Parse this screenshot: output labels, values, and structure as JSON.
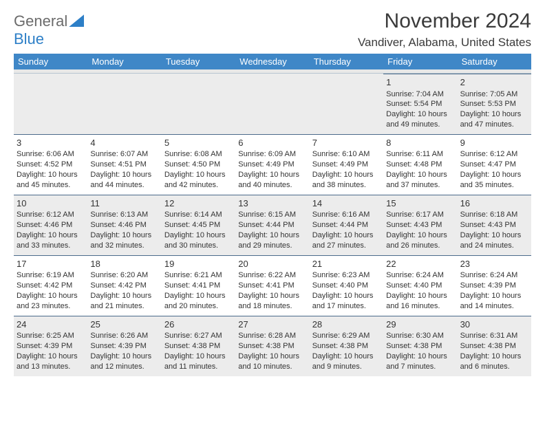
{
  "brand": {
    "part1": "General",
    "part2": "Blue"
  },
  "title": "November 2024",
  "location": "Vandiver, Alabama, United States",
  "colors": {
    "header_bg": "#3f87c7",
    "header_text": "#ffffff",
    "shade_bg": "#ececec",
    "week_divider": "#4a6a8a",
    "text": "#333333",
    "background": "#ffffff"
  },
  "typography": {
    "title_fontsize": 30,
    "location_fontsize": 17,
    "dow_fontsize": 13,
    "daynum_fontsize": 13,
    "body_fontsize": 11
  },
  "dow": [
    "Sunday",
    "Monday",
    "Tuesday",
    "Wednesday",
    "Thursday",
    "Friday",
    "Saturday"
  ],
  "weeks": [
    [
      null,
      null,
      null,
      null,
      null,
      {
        "n": "1",
        "sr": "Sunrise: 7:04 AM",
        "ss": "Sunset: 5:54 PM",
        "d1": "Daylight: 10 hours",
        "d2": "and 49 minutes."
      },
      {
        "n": "2",
        "sr": "Sunrise: 7:05 AM",
        "ss": "Sunset: 5:53 PM",
        "d1": "Daylight: 10 hours",
        "d2": "and 47 minutes."
      }
    ],
    [
      {
        "n": "3",
        "sr": "Sunrise: 6:06 AM",
        "ss": "Sunset: 4:52 PM",
        "d1": "Daylight: 10 hours",
        "d2": "and 45 minutes."
      },
      {
        "n": "4",
        "sr": "Sunrise: 6:07 AM",
        "ss": "Sunset: 4:51 PM",
        "d1": "Daylight: 10 hours",
        "d2": "and 44 minutes."
      },
      {
        "n": "5",
        "sr": "Sunrise: 6:08 AM",
        "ss": "Sunset: 4:50 PM",
        "d1": "Daylight: 10 hours",
        "d2": "and 42 minutes."
      },
      {
        "n": "6",
        "sr": "Sunrise: 6:09 AM",
        "ss": "Sunset: 4:49 PM",
        "d1": "Daylight: 10 hours",
        "d2": "and 40 minutes."
      },
      {
        "n": "7",
        "sr": "Sunrise: 6:10 AM",
        "ss": "Sunset: 4:49 PM",
        "d1": "Daylight: 10 hours",
        "d2": "and 38 minutes."
      },
      {
        "n": "8",
        "sr": "Sunrise: 6:11 AM",
        "ss": "Sunset: 4:48 PM",
        "d1": "Daylight: 10 hours",
        "d2": "and 37 minutes."
      },
      {
        "n": "9",
        "sr": "Sunrise: 6:12 AM",
        "ss": "Sunset: 4:47 PM",
        "d1": "Daylight: 10 hours",
        "d2": "and 35 minutes."
      }
    ],
    [
      {
        "n": "10",
        "sr": "Sunrise: 6:12 AM",
        "ss": "Sunset: 4:46 PM",
        "d1": "Daylight: 10 hours",
        "d2": "and 33 minutes."
      },
      {
        "n": "11",
        "sr": "Sunrise: 6:13 AM",
        "ss": "Sunset: 4:46 PM",
        "d1": "Daylight: 10 hours",
        "d2": "and 32 minutes."
      },
      {
        "n": "12",
        "sr": "Sunrise: 6:14 AM",
        "ss": "Sunset: 4:45 PM",
        "d1": "Daylight: 10 hours",
        "d2": "and 30 minutes."
      },
      {
        "n": "13",
        "sr": "Sunrise: 6:15 AM",
        "ss": "Sunset: 4:44 PM",
        "d1": "Daylight: 10 hours",
        "d2": "and 29 minutes."
      },
      {
        "n": "14",
        "sr": "Sunrise: 6:16 AM",
        "ss": "Sunset: 4:44 PM",
        "d1": "Daylight: 10 hours",
        "d2": "and 27 minutes."
      },
      {
        "n": "15",
        "sr": "Sunrise: 6:17 AM",
        "ss": "Sunset: 4:43 PM",
        "d1": "Daylight: 10 hours",
        "d2": "and 26 minutes."
      },
      {
        "n": "16",
        "sr": "Sunrise: 6:18 AM",
        "ss": "Sunset: 4:43 PM",
        "d1": "Daylight: 10 hours",
        "d2": "and 24 minutes."
      }
    ],
    [
      {
        "n": "17",
        "sr": "Sunrise: 6:19 AM",
        "ss": "Sunset: 4:42 PM",
        "d1": "Daylight: 10 hours",
        "d2": "and 23 minutes."
      },
      {
        "n": "18",
        "sr": "Sunrise: 6:20 AM",
        "ss": "Sunset: 4:42 PM",
        "d1": "Daylight: 10 hours",
        "d2": "and 21 minutes."
      },
      {
        "n": "19",
        "sr": "Sunrise: 6:21 AM",
        "ss": "Sunset: 4:41 PM",
        "d1": "Daylight: 10 hours",
        "d2": "and 20 minutes."
      },
      {
        "n": "20",
        "sr": "Sunrise: 6:22 AM",
        "ss": "Sunset: 4:41 PM",
        "d1": "Daylight: 10 hours",
        "d2": "and 18 minutes."
      },
      {
        "n": "21",
        "sr": "Sunrise: 6:23 AM",
        "ss": "Sunset: 4:40 PM",
        "d1": "Daylight: 10 hours",
        "d2": "and 17 minutes."
      },
      {
        "n": "22",
        "sr": "Sunrise: 6:24 AM",
        "ss": "Sunset: 4:40 PM",
        "d1": "Daylight: 10 hours",
        "d2": "and 16 minutes."
      },
      {
        "n": "23",
        "sr": "Sunrise: 6:24 AM",
        "ss": "Sunset: 4:39 PM",
        "d1": "Daylight: 10 hours",
        "d2": "and 14 minutes."
      }
    ],
    [
      {
        "n": "24",
        "sr": "Sunrise: 6:25 AM",
        "ss": "Sunset: 4:39 PM",
        "d1": "Daylight: 10 hours",
        "d2": "and 13 minutes."
      },
      {
        "n": "25",
        "sr": "Sunrise: 6:26 AM",
        "ss": "Sunset: 4:39 PM",
        "d1": "Daylight: 10 hours",
        "d2": "and 12 minutes."
      },
      {
        "n": "26",
        "sr": "Sunrise: 6:27 AM",
        "ss": "Sunset: 4:38 PM",
        "d1": "Daylight: 10 hours",
        "d2": "and 11 minutes."
      },
      {
        "n": "27",
        "sr": "Sunrise: 6:28 AM",
        "ss": "Sunset: 4:38 PM",
        "d1": "Daylight: 10 hours",
        "d2": "and 10 minutes."
      },
      {
        "n": "28",
        "sr": "Sunrise: 6:29 AM",
        "ss": "Sunset: 4:38 PM",
        "d1": "Daylight: 10 hours",
        "d2": "and 9 minutes."
      },
      {
        "n": "29",
        "sr": "Sunrise: 6:30 AM",
        "ss": "Sunset: 4:38 PM",
        "d1": "Daylight: 10 hours",
        "d2": "and 7 minutes."
      },
      {
        "n": "30",
        "sr": "Sunrise: 6:31 AM",
        "ss": "Sunset: 4:38 PM",
        "d1": "Daylight: 10 hours",
        "d2": "and 6 minutes."
      }
    ]
  ]
}
